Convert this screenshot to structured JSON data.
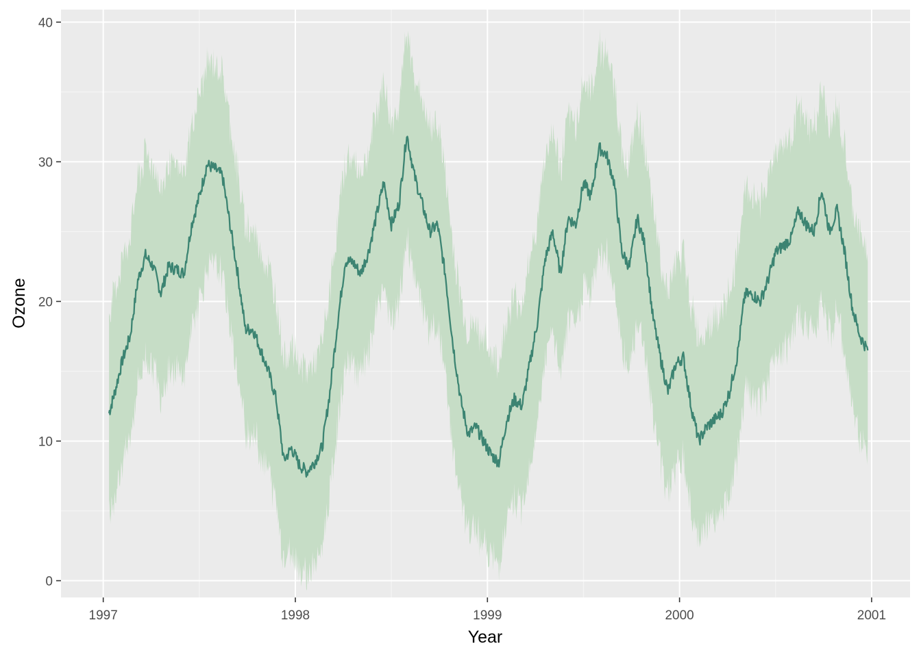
{
  "chart_data": {
    "type": "line",
    "title": "",
    "xlabel": "Year",
    "ylabel": "Ozone",
    "xlim": [
      1996.78,
      2001.2
    ],
    "ylim": [
      -1.2,
      40.9
    ],
    "x_ticks": [
      1997,
      1998,
      1999,
      2000,
      2001
    ],
    "x_tick_labels": [
      "1997",
      "1998",
      "1999",
      "2000",
      "2001"
    ],
    "y_ticks": [
      0,
      10,
      20,
      30,
      40
    ],
    "y_tick_labels": [
      "0",
      "10",
      "20",
      "30",
      "40"
    ],
    "grid": true,
    "legend": "none",
    "colors": {
      "panel": "#ebebeb",
      "grid_major": "#ffffff",
      "grid_minor": "#f5f5f5",
      "line": "#3c8472",
      "ribbon": "#c6ddc6"
    },
    "series": [
      {
        "kind": "line",
        "x": [
          1997.03,
          1997.06,
          1997.1,
          1997.14,
          1997.18,
          1997.22,
          1997.26,
          1997.3,
          1997.34,
          1997.38,
          1997.42,
          1997.46,
          1997.5,
          1997.54,
          1997.58,
          1997.62,
          1997.66,
          1997.7,
          1997.74,
          1997.78,
          1997.82,
          1997.86,
          1997.9,
          1997.94,
          1997.98,
          1998.02,
          1998.06,
          1998.1,
          1998.14,
          1998.18,
          1998.22,
          1998.26,
          1998.3,
          1998.34,
          1998.38,
          1998.42,
          1998.46,
          1998.5,
          1998.54,
          1998.58,
          1998.62,
          1998.66,
          1998.7,
          1998.74,
          1998.78,
          1998.82,
          1998.86,
          1998.9,
          1998.94,
          1998.98,
          1999.02,
          1999.06,
          1999.1,
          1999.14,
          1999.18,
          1999.22,
          1999.26,
          1999.3,
          1999.34,
          1999.38,
          1999.42,
          1999.46,
          1999.5,
          1999.54,
          1999.58,
          1999.62,
          1999.66,
          1999.7,
          1999.74,
          1999.78,
          1999.82,
          1999.86,
          1999.9,
          1999.94,
          1999.98,
          2000.02,
          2000.06,
          2000.1,
          2000.14,
          2000.18,
          2000.22,
          2000.26,
          2000.3,
          2000.34,
          2000.38,
          2000.42,
          2000.46,
          2000.5,
          2000.54,
          2000.58,
          2000.62,
          2000.66,
          2000.7,
          2000.74,
          2000.78,
          2000.82,
          2000.86,
          2000.9,
          2000.94,
          2000.98
        ],
        "y": [
          12.0,
          13.5,
          15.8,
          17.5,
          21.5,
          23.3,
          22.5,
          20.6,
          22.5,
          22.3,
          22.0,
          25.5,
          27.5,
          29.8,
          29.5,
          29.0,
          25.5,
          22.0,
          18.0,
          18.0,
          16.5,
          15.0,
          13.0,
          8.6,
          9.5,
          8.3,
          7.8,
          8.5,
          9.6,
          13.5,
          18.5,
          22.9,
          22.8,
          22.0,
          23.5,
          26.0,
          28.5,
          25.5,
          27.0,
          32.0,
          29.0,
          27.0,
          25.0,
          25.5,
          22.0,
          17.0,
          13.0,
          10.5,
          11.0,
          10.0,
          9.0,
          8.5,
          11.5,
          13.0,
          12.5,
          15.5,
          18.5,
          23.0,
          25.0,
          22.0,
          26.0,
          25.5,
          28.5,
          27.5,
          31.0,
          30.5,
          28.5,
          23.5,
          22.5,
          26.0,
          24.0,
          19.0,
          16.0,
          13.5,
          15.5,
          16.0,
          12.5,
          10.0,
          11.0,
          11.5,
          12.0,
          13.5,
          16.0,
          20.5,
          20.5,
          20.0,
          21.5,
          23.5,
          24.0,
          24.5,
          26.5,
          25.5,
          25.0,
          28.0,
          25.0,
          26.5,
          23.5,
          19.5,
          17.5,
          16.5
        ]
      }
    ]
  }
}
